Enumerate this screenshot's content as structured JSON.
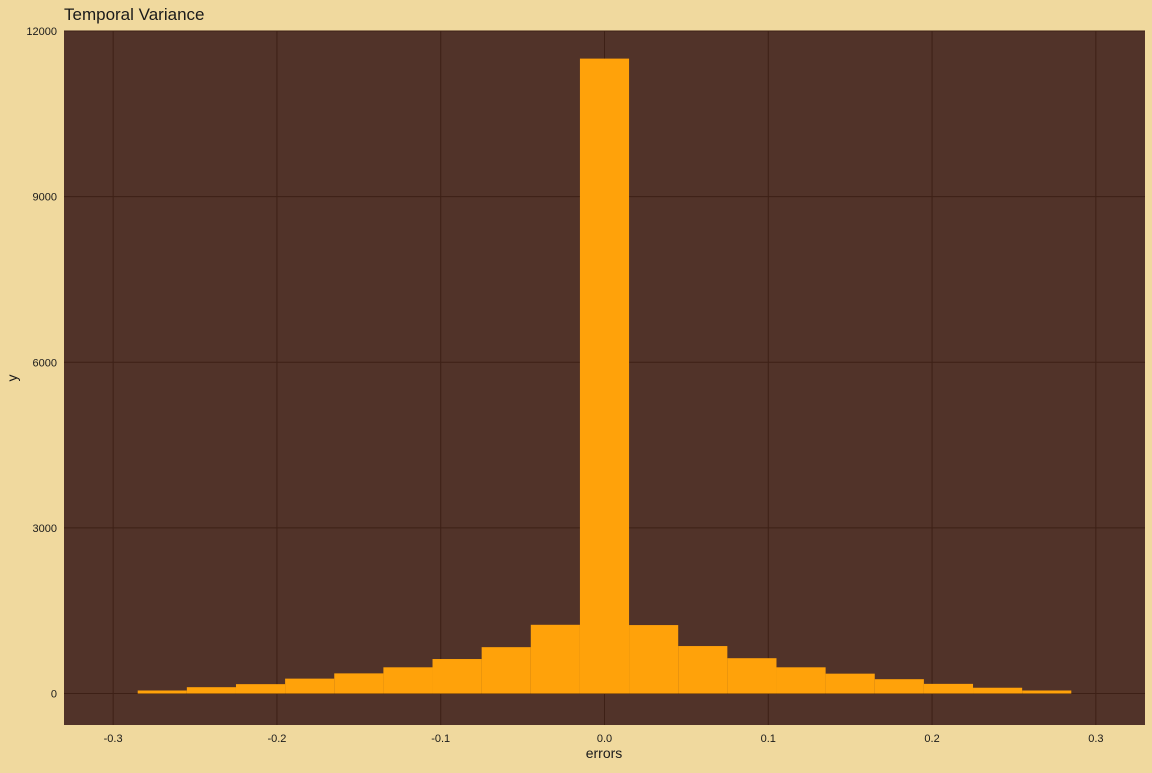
{
  "chart_data": {
    "type": "bar",
    "title": "Temporal Variance",
    "xlabel": "errors",
    "ylabel": "y",
    "xlim": [
      -0.33,
      0.33
    ],
    "ylim": [
      -570,
      12000
    ],
    "x_ticks": [
      -0.3,
      -0.2,
      -0.1,
      0.0,
      0.1,
      0.2,
      0.3
    ],
    "x_tick_labels": [
      "-0.3",
      "-0.2",
      "-0.1",
      "0.0",
      "0.1",
      "0.2",
      "0.3"
    ],
    "y_ticks": [
      0,
      3000,
      6000,
      9000,
      12000
    ],
    "y_tick_labels": [
      "0",
      "3000",
      "6000",
      "9000",
      "12000"
    ],
    "grid": true,
    "bin_width": 0.03,
    "bins": [
      {
        "x": -0.27,
        "count": 55
      },
      {
        "x": -0.24,
        "count": 115
      },
      {
        "x": -0.21,
        "count": 170
      },
      {
        "x": -0.18,
        "count": 270
      },
      {
        "x": -0.15,
        "count": 365
      },
      {
        "x": -0.12,
        "count": 475
      },
      {
        "x": -0.09,
        "count": 625
      },
      {
        "x": -0.06,
        "count": 840
      },
      {
        "x": -0.03,
        "count": 1245
      },
      {
        "x": 0.0,
        "count": 11500
      },
      {
        "x": 0.03,
        "count": 1240
      },
      {
        "x": 0.06,
        "count": 860
      },
      {
        "x": 0.09,
        "count": 640
      },
      {
        "x": 0.12,
        "count": 475
      },
      {
        "x": 0.15,
        "count": 360
      },
      {
        "x": 0.18,
        "count": 260
      },
      {
        "x": 0.21,
        "count": 175
      },
      {
        "x": 0.24,
        "count": 105
      },
      {
        "x": 0.27,
        "count": 55
      }
    ]
  },
  "colors": {
    "background": "#f0d99e",
    "panel": "#513329",
    "grid": "#3d2016",
    "bar": "#ffa20a",
    "text": "#000000"
  }
}
